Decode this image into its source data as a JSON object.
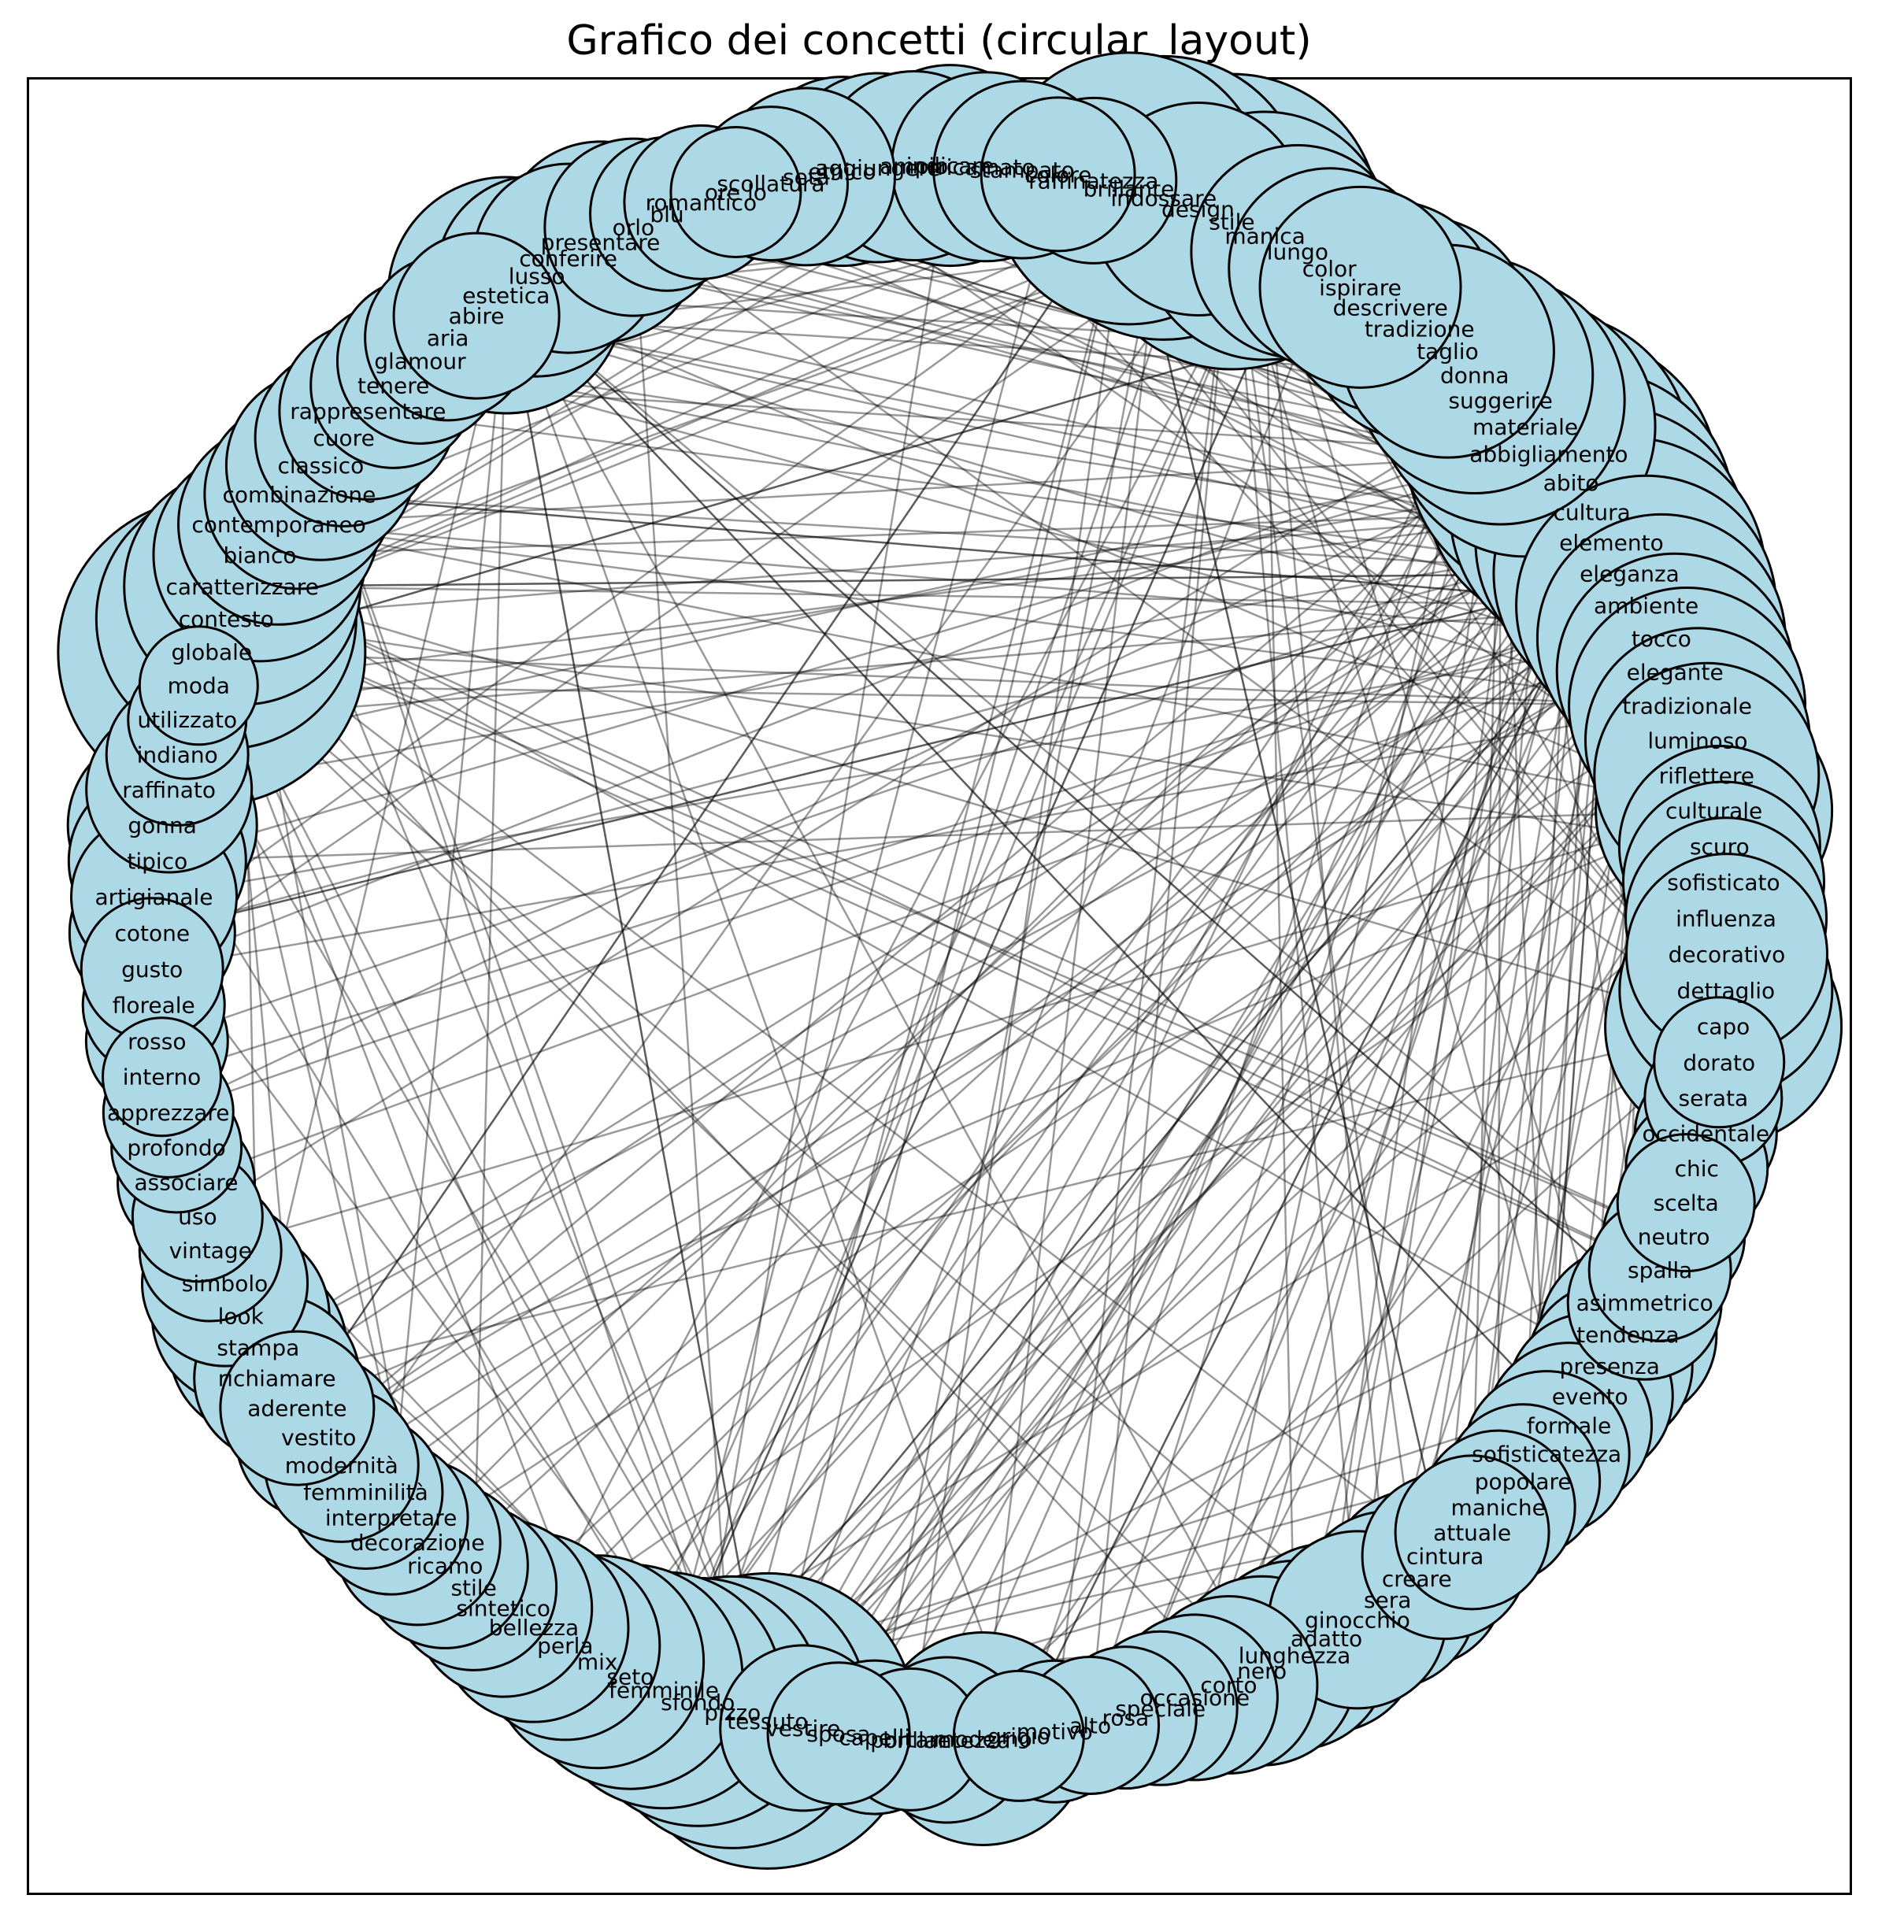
{
  "title": "Grafico dei concetti (circular_layout)",
  "colors": {
    "node_fill": "#add8e6",
    "node_stroke": "#000000",
    "edge": "#000000"
  },
  "graph": {
    "layout": "circular",
    "nodes": [
      {
        "label": "tessuto",
        "size": 0.95
      },
      {
        "label": "pizzo",
        "size": 0.85
      },
      {
        "label": "sfondo",
        "size": 0.75
      },
      {
        "label": "femminile",
        "size": 0.7
      },
      {
        "label": "seto",
        "size": 0.65
      },
      {
        "label": "mix",
        "size": 0.6
      },
      {
        "label": "perla",
        "size": 0.5
      },
      {
        "label": "bellezza",
        "size": 0.5
      },
      {
        "label": "sintetico",
        "size": 0.45
      },
      {
        "label": "stile",
        "size": 0.4
      },
      {
        "label": "ricamo",
        "size": 0.4
      },
      {
        "label": "decorazione",
        "size": 0.4
      },
      {
        "label": "interpretare",
        "size": 0.35
      },
      {
        "label": "femminilità",
        "size": 0.35
      },
      {
        "label": "modernità",
        "size": 0.35
      },
      {
        "label": "vestito",
        "size": 0.4
      },
      {
        "label": "aderente",
        "size": 0.35
      },
      {
        "label": "richiamare",
        "size": 0.4
      },
      {
        "label": "stampa",
        "size": 0.45
      },
      {
        "label": "look",
        "size": 0.45
      },
      {
        "label": "simbolo",
        "size": 0.4
      },
      {
        "label": "vintage",
        "size": 0.3
      },
      {
        "label": "uso",
        "size": 0.25
      },
      {
        "label": "associare",
        "size": 0.28
      },
      {
        "label": "profondo",
        "size": 0.25
      },
      {
        "label": "apprezzare",
        "size": 0.25
      },
      {
        "label": "interno",
        "size": 0.2
      },
      {
        "label": "rosso",
        "size": 0.3
      },
      {
        "label": "floreale",
        "size": 0.3
      },
      {
        "label": "gusto",
        "size": 0.3
      },
      {
        "label": "cotone",
        "size": 0.4
      },
      {
        "label": "artigianale",
        "size": 0.4
      },
      {
        "label": "tipico",
        "size": 0.45
      },
      {
        "label": "gonna",
        "size": 0.5
      },
      {
        "label": "raffinato",
        "size": 0.4
      },
      {
        "label": "indiano",
        "size": 0.3
      },
      {
        "label": "utilizzato",
        "size": 0.2
      },
      {
        "label": "moda",
        "size": 0.2
      },
      {
        "label": "globale",
        "size": 1.0
      },
      {
        "label": "contesto",
        "size": 0.8
      },
      {
        "label": "caratterizzare",
        "size": 0.7
      },
      {
        "label": "bianco",
        "size": 0.6
      },
      {
        "label": "contemporaneo",
        "size": 0.55
      },
      {
        "label": "combinazione",
        "size": 0.5
      },
      {
        "label": "classico",
        "size": 0.5
      },
      {
        "label": "cuore",
        "size": 0.45
      },
      {
        "label": "rappresentare",
        "size": 0.45
      },
      {
        "label": "tenere",
        "size": 0.4
      },
      {
        "label": "glamour",
        "size": 0.4
      },
      {
        "label": "aria",
        "size": 0.4
      },
      {
        "label": "abire",
        "size": 0.4
      },
      {
        "label": "estetica",
        "size": 0.7
      },
      {
        "label": "lusso",
        "size": 0.55
      },
      {
        "label": "conferire",
        "size": 0.5
      },
      {
        "label": "presentare",
        "size": 0.55
      },
      {
        "label": "orlo",
        "size": 0.45
      },
      {
        "label": "blu",
        "size": 0.35
      },
      {
        "label": "romantico",
        "size": 0.35
      },
      {
        "label": "ore lo",
        "size": 0.25
      },
      {
        "label": "scollatura",
        "size": 0.35
      },
      {
        "label": "seta",
        "size": 0.45
      },
      {
        "label": "etnico",
        "size": 0.5
      },
      {
        "label": "aggiungere",
        "size": 0.5
      },
      {
        "label": "ampio",
        "size": 0.5
      },
      {
        "label": "indicare",
        "size": 0.55
      },
      {
        "label": "ricamato",
        "size": 0.5
      },
      {
        "label": "stampato",
        "size": 0.45
      },
      {
        "label": "colore",
        "size": 0.35
      },
      {
        "label": "raffinatezza",
        "size": 0.4
      },
      {
        "label": "brillante",
        "size": 0.85
      },
      {
        "label": "indossare",
        "size": 0.9
      },
      {
        "label": "design",
        "size": 0.6
      },
      {
        "label": "stile",
        "size": 0.95
      },
      {
        "label": "manica",
        "size": 0.75
      },
      {
        "label": "lungo",
        "size": 0.6
      },
      {
        "label": "color",
        "size": 0.55
      },
      {
        "label": "ispirare",
        "size": 0.55
      },
      {
        "label": "descrivere",
        "size": 0.6
      },
      {
        "label": "tradizione",
        "size": 0.65
      },
      {
        "label": "taglio",
        "size": 0.6
      },
      {
        "label": "donna",
        "size": 0.7
      },
      {
        "label": "suggerire",
        "size": 0.75
      },
      {
        "label": "materiale",
        "size": 0.8
      },
      {
        "label": "abbigliamento",
        "size": 0.9
      },
      {
        "label": "abito",
        "size": 0.95
      },
      {
        "label": "cultura",
        "size": 0.9
      },
      {
        "label": "elemento",
        "size": 0.85
      },
      {
        "label": "eleganza",
        "size": 0.85
      },
      {
        "label": "ambiente",
        "size": 0.8
      },
      {
        "label": "tocco",
        "size": 0.75
      },
      {
        "label": "elegante",
        "size": 0.7
      },
      {
        "label": "tradizionale",
        "size": 0.7
      },
      {
        "label": "luminoso",
        "size": 0.65
      },
      {
        "label": "riflettere",
        "size": 0.65
      },
      {
        "label": "culturale",
        "size": 0.7
      },
      {
        "label": "scuro",
        "size": 0.55
      },
      {
        "label": "sofisticato",
        "size": 0.55
      },
      {
        "label": "influenza",
        "size": 0.55
      },
      {
        "label": "decorativo",
        "size": 0.55
      },
      {
        "label": "dettaglio",
        "size": 0.6
      },
      {
        "label": "capo",
        "size": 0.7
      },
      {
        "label": "dorato",
        "size": 0.25
      },
      {
        "label": "serata",
        "size": 0.28
      },
      {
        "label": "occidentale",
        "size": 0.3
      },
      {
        "label": "chic",
        "size": 0.3
      },
      {
        "label": "scelta",
        "size": 0.28
      },
      {
        "label": "neutro",
        "size": 0.3
      },
      {
        "label": "spalla",
        "size": 0.3
      },
      {
        "label": "asimmetrico",
        "size": 0.35
      },
      {
        "label": "tendenza",
        "size": 0.45
      },
      {
        "label": "presenza",
        "size": 0.4
      },
      {
        "label": "evento",
        "size": 0.4
      },
      {
        "label": "formale",
        "size": 0.4
      },
      {
        "label": "sofisticatezza",
        "size": 0.4
      },
      {
        "label": "popolare",
        "size": 0.35
      },
      {
        "label": "maniche",
        "size": 0.35
      },
      {
        "label": "attuale",
        "size": 0.35
      },
      {
        "label": "cintura",
        "size": 0.4
      },
      {
        "label": "creare",
        "size": 0.45
      },
      {
        "label": "sera",
        "size": 0.45
      },
      {
        "label": "ginocchio",
        "size": 0.45
      },
      {
        "label": "adatto",
        "size": 0.5
      },
      {
        "label": "lunghezza",
        "size": 0.5
      },
      {
        "label": "nero",
        "size": 0.5
      },
      {
        "label": "corto",
        "size": 0.45
      },
      {
        "label": "occasione",
        "size": 0.4
      },
      {
        "label": "speciale",
        "size": 0.35
      },
      {
        "label": "rosa",
        "size": 0.3
      },
      {
        "label": "alto",
        "size": 0.28
      },
      {
        "label": "motivo",
        "size": 0.3
      },
      {
        "label": "grigio",
        "size": 0.25
      },
      {
        "label": "moderno",
        "size": 0.6
      },
      {
        "label": "brillantezza",
        "size": 0.4
      },
      {
        "label": "portare",
        "size": 0.3
      },
      {
        "label": "capelli",
        "size": 0.35
      },
      {
        "label": "sposa",
        "size": 0.3
      },
      {
        "label": "vestire",
        "size": 0.4
      }
    ]
  }
}
